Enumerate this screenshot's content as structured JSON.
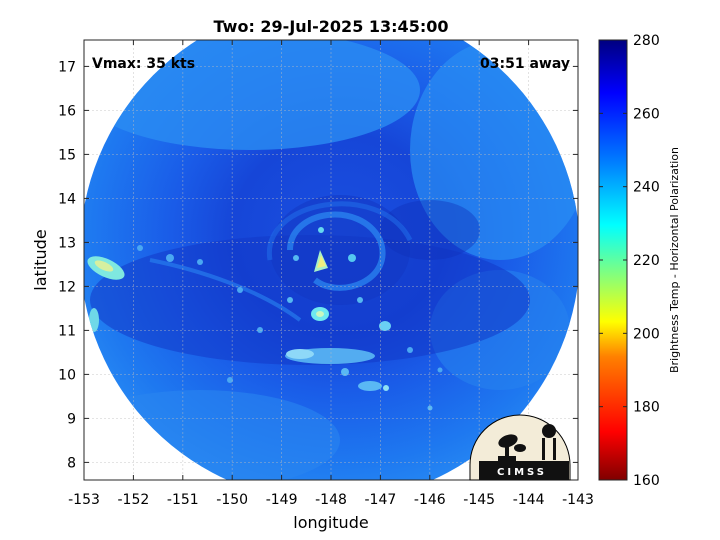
{
  "title": "Two: 29-Jul-2025 13:45:00",
  "vmax_label": "Vmax: 35 kts",
  "away_label": "03:51 away",
  "logo_text": "CIMSS",
  "chart_data": {
    "type": "heatmap",
    "title": "Two: 29-Jul-2025 13:45:00",
    "xlabel": "longitude",
    "ylabel": "latitude",
    "xlim": [
      -153,
      -143
    ],
    "ylim": [
      7.6,
      17.6
    ],
    "x_ticks": [
      -153,
      -152,
      -151,
      -150,
      -149,
      -148,
      -147,
      -146,
      -145,
      -144,
      -143
    ],
    "y_ticks": [
      8,
      9,
      10,
      11,
      12,
      13,
      14,
      15,
      16,
      17
    ],
    "grid": true,
    "storm_center": {
      "lon": -148.0,
      "lat": 12.6
    },
    "colorbar": {
      "label": "Brightness Temp - Horizontal Polarization",
      "range": [
        160,
        280
      ],
      "ticks": [
        160,
        180,
        200,
        220,
        240,
        260,
        280
      ],
      "colors": [
        "#800000",
        "#ff0000",
        "#ff8000",
        "#ffff00",
        "#80ff80",
        "#00ffff",
        "#0080ff",
        "#0000ff",
        "#000080"
      ]
    }
  }
}
